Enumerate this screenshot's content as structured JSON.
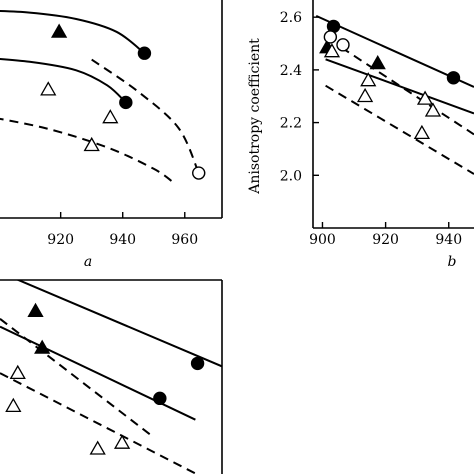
{
  "chart_data": [
    {
      "panel_label": "a",
      "type": "scatter",
      "xlabel": "",
      "ylabel": "",
      "xlim": [
        894,
        972
      ],
      "ylim": [
        0,
        100
      ],
      "x_ticks": [
        920,
        940,
        960
      ],
      "y_ticks": [],
      "markers": [
        {
          "marker": "filled-triangle",
          "x": 919.5,
          "y": 87
        },
        {
          "marker": "filled-circle",
          "x": 947,
          "y": 77
        },
        {
          "marker": "filled-circle",
          "x": 941,
          "y": 54
        },
        {
          "marker": "open-triangle",
          "x": 916,
          "y": 60
        },
        {
          "marker": "open-triangle",
          "x": 936,
          "y": 47
        },
        {
          "marker": "open-triangle",
          "x": 930,
          "y": 34
        },
        {
          "marker": "open-circle",
          "x": 964.5,
          "y": 21
        }
      ],
      "lines": [
        {
          "style": "solid",
          "points": [
            [
              894,
              97
            ],
            [
              910,
              96
            ],
            [
              925,
              93
            ],
            [
              938,
              87
            ],
            [
              947,
              77
            ]
          ]
        },
        {
          "style": "solid",
          "points": [
            [
              894,
              75
            ],
            [
              910,
              73
            ],
            [
              925,
              69
            ],
            [
              935,
              62
            ],
            [
              941,
              54
            ]
          ]
        },
        {
          "style": "dashed",
          "points": [
            [
              930,
              74
            ],
            [
              945,
              59
            ],
            [
              958,
              42
            ],
            [
              964.5,
              21
            ]
          ]
        },
        {
          "style": "dashed",
          "points": [
            [
              894,
              48
            ],
            [
              915,
              42
            ],
            [
              935,
              33
            ],
            [
              950,
              23
            ],
            [
              956,
              17
            ]
          ]
        }
      ]
    },
    {
      "panel_label": "b",
      "type": "scatter",
      "xlabel": "",
      "ylabel": "Anisotropy coefficient",
      "xlim": [
        897,
        948
      ],
      "ylim": [
        1.8,
        2.65
      ],
      "x_ticks": [
        900,
        920,
        940
      ],
      "x_tick_labels": [
        "900",
        "920",
        "940"
      ],
      "y_ticks": [
        2.0,
        2.2,
        2.4,
        2.6
      ],
      "y_tick_labels": [
        "2.0",
        "2.2",
        "2.4",
        "2.6"
      ],
      "markers": [
        {
          "marker": "filled-circle",
          "x": 903.5,
          "y": 2.565
        },
        {
          "marker": "filled-circle",
          "x": 941.5,
          "y": 2.37
        },
        {
          "marker": "filled-triangle",
          "x": 901.5,
          "y": 2.485
        },
        {
          "marker": "filled-triangle",
          "x": 917.5,
          "y": 2.425
        },
        {
          "marker": "open-circle",
          "x": 902.5,
          "y": 2.525
        },
        {
          "marker": "open-circle",
          "x": 906.5,
          "y": 2.495
        },
        {
          "marker": "open-triangle",
          "x": 903,
          "y": 2.47
        },
        {
          "marker": "open-triangle",
          "x": 914.5,
          "y": 2.36
        },
        {
          "marker": "open-triangle",
          "x": 913.5,
          "y": 2.3
        },
        {
          "marker": "open-triangle",
          "x": 932.5,
          "y": 2.29
        },
        {
          "marker": "open-triangle",
          "x": 935,
          "y": 2.245
        },
        {
          "marker": "open-triangle",
          "x": 931.5,
          "y": 2.16
        }
      ],
      "lines": [
        {
          "style": "solid",
          "points": [
            [
              898,
              2.605
            ],
            [
              948,
              2.335
            ]
          ]
        },
        {
          "style": "solid",
          "points": [
            [
              901,
              2.44
            ],
            [
              948,
              2.235
            ]
          ]
        },
        {
          "style": "dashed",
          "points": [
            [
              906,
              2.485
            ],
            [
              948,
              2.155
            ]
          ]
        },
        {
          "style": "dashed",
          "points": [
            [
              901,
              2.34
            ],
            [
              948,
              2.005
            ]
          ]
        }
      ]
    },
    {
      "panel_label": "",
      "type": "scatter",
      "xlabel": "",
      "ylabel": "",
      "xlim": [
        0,
        100
      ],
      "ylim": [
        0,
        100
      ],
      "x_ticks": [],
      "y_ticks": [],
      "markers": [
        {
          "marker": "filled-triangle",
          "x": 16,
          "y": 84
        },
        {
          "marker": "filled-triangle",
          "x": 19,
          "y": 65
        },
        {
          "marker": "filled-circle",
          "x": 89,
          "y": 57
        },
        {
          "marker": "filled-circle",
          "x": 72,
          "y": 39
        },
        {
          "marker": "open-triangle",
          "x": 8,
          "y": 52
        },
        {
          "marker": "open-triangle",
          "x": 6,
          "y": 35
        },
        {
          "marker": "open-triangle",
          "x": 55,
          "y": 16
        },
        {
          "marker": "open-triangle",
          "x": 44,
          "y": 13
        }
      ],
      "lines": [
        {
          "style": "solid",
          "points": [
            [
              0,
              104
            ],
            [
              103,
              54
            ]
          ]
        },
        {
          "style": "solid",
          "points": [
            [
              0,
              76
            ],
            [
              88,
              28
            ]
          ]
        },
        {
          "style": "dashed",
          "points": [
            [
              0,
              80
            ],
            [
              68,
              20
            ]
          ]
        },
        {
          "style": "dashed",
          "points": [
            [
              0,
              52
            ],
            [
              97,
              -5
            ]
          ]
        }
      ]
    }
  ]
}
